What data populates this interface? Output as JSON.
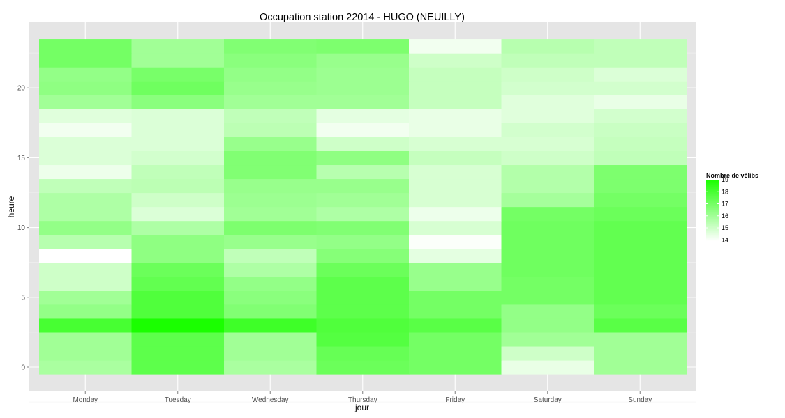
{
  "chart_data": {
    "type": "heatmap",
    "title": "Occupation station 22014 - HUGO (NEUILLY)",
    "xlabel": "jour",
    "ylabel": "heure",
    "categories": [
      "Monday",
      "Tuesday",
      "Wednesday",
      "Thursday",
      "Friday",
      "Saturday",
      "Sunday"
    ],
    "hours": [
      0,
      1,
      2,
      3,
      4,
      5,
      6,
      7,
      8,
      9,
      10,
      11,
      12,
      13,
      14,
      15,
      16,
      17,
      18,
      19,
      20,
      21,
      22,
      23
    ],
    "values": [
      [
        15.8,
        17.5,
        15.8,
        17.2,
        17.0,
        14.4,
        16.0
      ],
      [
        16.0,
        17.5,
        16.0,
        17.3,
        17.0,
        15.0,
        16.0
      ],
      [
        16.0,
        17.5,
        16.0,
        17.7,
        17.0,
        16.0,
        16.0
      ],
      [
        18.0,
        19.0,
        18.2,
        17.8,
        17.6,
        16.3,
        17.6
      ],
      [
        16.3,
        17.8,
        16.7,
        17.5,
        17.0,
        16.3,
        17.2
      ],
      [
        16.0,
        17.8,
        16.5,
        17.5,
        17.0,
        17.0,
        17.4
      ],
      [
        15.0,
        17.4,
        16.3,
        17.5,
        16.2,
        17.0,
        17.4
      ],
      [
        15.0,
        17.2,
        15.7,
        17.2,
        16.2,
        17.1,
        17.4
      ],
      [
        13.9,
        16.4,
        15.3,
        16.6,
        14.5,
        17.1,
        17.4
      ],
      [
        15.5,
        16.4,
        16.2,
        16.3,
        14.0,
        17.1,
        17.4
      ],
      [
        16.3,
        15.7,
        16.8,
        16.7,
        14.8,
        17.1,
        17.4
      ],
      [
        15.7,
        14.7,
        16.0,
        15.7,
        14.3,
        17.0,
        17.2
      ],
      [
        15.7,
        15.0,
        16.1,
        16.0,
        14.8,
        15.9,
        17.0
      ],
      [
        15.3,
        15.4,
        16.2,
        16.2,
        14.8,
        15.6,
        16.8
      ],
      [
        14.3,
        15.3,
        16.7,
        15.5,
        14.8,
        15.6,
        16.8
      ],
      [
        14.7,
        14.9,
        16.7,
        16.4,
        15.2,
        15.0,
        15.3
      ],
      [
        14.7,
        14.7,
        16.2,
        15.0,
        14.8,
        14.8,
        15.2
      ],
      [
        14.2,
        14.7,
        15.4,
        14.2,
        14.4,
        14.9,
        15.1
      ],
      [
        14.6,
        14.7,
        15.3,
        14.5,
        14.4,
        14.6,
        14.9
      ],
      [
        16.0,
        16.5,
        16.0,
        16.0,
        15.2,
        14.6,
        14.4
      ],
      [
        16.4,
        17.1,
        16.2,
        16.1,
        15.2,
        14.9,
        14.9
      ],
      [
        16.3,
        16.9,
        16.3,
        16.1,
        15.2,
        15.0,
        14.7
      ],
      [
        17.0,
        16.0,
        16.5,
        16.2,
        15.0,
        15.3,
        15.3
      ],
      [
        17.0,
        16.0,
        16.7,
        16.8,
        14.2,
        15.5,
        15.3
      ]
    ],
    "legend": {
      "title": "Nombre de vélibs",
      "ticks": [
        19,
        18,
        17,
        16,
        15,
        14
      ],
      "position": "right",
      "color_low": "#ffffff",
      "color_high": "#1aff00"
    },
    "y_ticks": [
      0,
      5,
      10,
      15,
      20
    ],
    "ylim": [
      -0.5,
      23.5
    ],
    "colors": {
      "panel_background": "#e5e5e5",
      "grid": "#ffffff",
      "tick_label": "#4d4d4d"
    }
  }
}
